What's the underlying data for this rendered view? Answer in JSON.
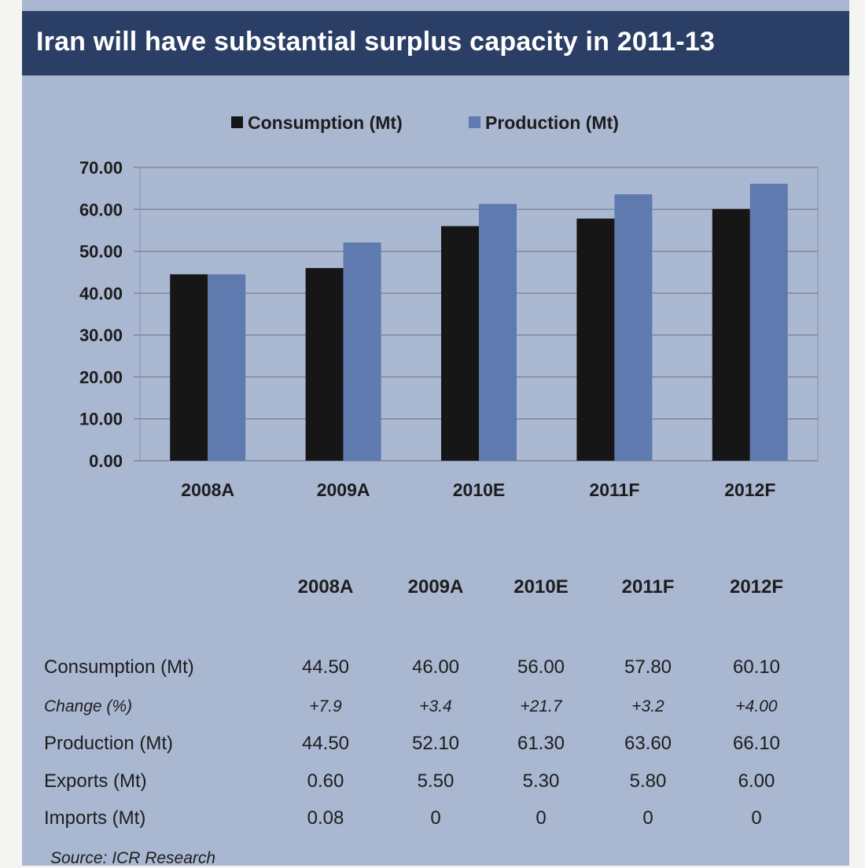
{
  "title": "Iran will have substantial surplus capacity in 2011-13",
  "chart_data": {
    "type": "bar",
    "categories": [
      "2008A",
      "2009A",
      "2010E",
      "2011F",
      "2012F"
    ],
    "series": [
      {
        "name": "Consumption (Mt)",
        "color": "#161616",
        "values": [
          44.5,
          46.0,
          56.0,
          57.8,
          60.1
        ]
      },
      {
        "name": "Production (Mt)",
        "color": "#5f7aaf",
        "values": [
          44.5,
          52.1,
          61.3,
          63.6,
          66.1
        ]
      }
    ],
    "y_ticks": [
      "70.00",
      "60.00",
      "50.00",
      "40.00",
      "30.00",
      "20.00",
      "10.00",
      "0.00"
    ],
    "ylim": [
      0,
      70
    ],
    "grid": true,
    "legend_position": "top"
  },
  "table": {
    "headers": [
      "2008A",
      "2009A",
      "2010E",
      "2011F",
      "2012F"
    ],
    "rows": [
      {
        "label": "Consumption (Mt)",
        "italic": false,
        "values": [
          "44.50",
          "46.00",
          "56.00",
          "57.80",
          "60.10"
        ]
      },
      {
        "label": "Change (%)",
        "italic": true,
        "values": [
          "+7.9",
          "+3.4",
          "+21.7",
          "+3.2",
          "+4.00"
        ]
      },
      {
        "label": "Production (Mt)",
        "italic": false,
        "values": [
          "44.50",
          "52.10",
          "61.30",
          "63.60",
          "66.10"
        ]
      },
      {
        "label": "Exports (Mt)",
        "italic": false,
        "values": [
          "0.60",
          "5.50",
          "5.30",
          "5.80",
          "6.00"
        ]
      },
      {
        "label": "Imports (Mt)",
        "italic": false,
        "values": [
          "0.08",
          "0",
          "0",
          "0",
          "0"
        ]
      }
    ]
  },
  "source": "Source: ICR Research"
}
